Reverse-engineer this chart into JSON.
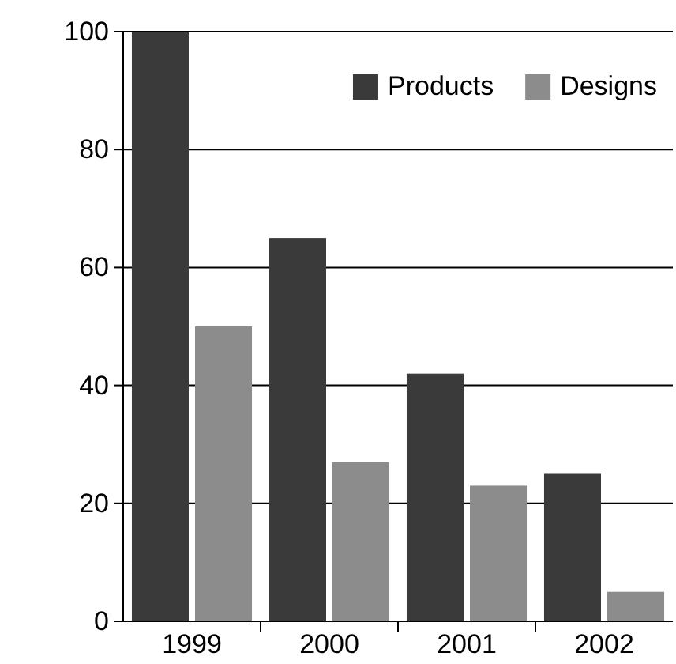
{
  "chart_data": {
    "type": "bar",
    "categories": [
      "1999",
      "2000",
      "2001",
      "2002"
    ],
    "series": [
      {
        "name": "Products",
        "color": "#3a3a3a",
        "values": [
          100,
          65,
          42,
          25
        ]
      },
      {
        "name": "Designs",
        "color": "#8c8c8c",
        "values": [
          50,
          27,
          23,
          5
        ]
      }
    ],
    "ylim": [
      0,
      100
    ],
    "yticks": [
      0,
      20,
      40,
      60,
      80,
      100
    ],
    "grid": "y",
    "legend": "top right"
  }
}
